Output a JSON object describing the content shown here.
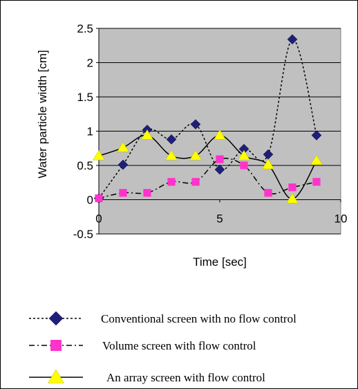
{
  "chart_data": {
    "type": "line",
    "xlabel": "Time [sec]",
    "ylabel": "Water particle width [cm]",
    "xlim": [
      0,
      10
    ],
    "ylim": [
      -0.5,
      2.5
    ],
    "x_ticks": [
      "0",
      "5",
      "10"
    ],
    "y_ticks": [
      "2.5",
      "2",
      "1.5",
      "1",
      "0.5",
      "0",
      "-0.5"
    ],
    "plot_background": "#c0c0c0",
    "grid": true,
    "legend_position": "bottom",
    "series": [
      {
        "name": "Conventional screen with no flow control",
        "marker": "diamond",
        "line_style": "dotted",
        "color": "#1f1f7a",
        "x": [
          0,
          1,
          2,
          3,
          4,
          5,
          6,
          7,
          8,
          9
        ],
        "y": [
          0.02,
          0.51,
          1.02,
          0.88,
          1.1,
          0.44,
          0.74,
          0.66,
          2.34,
          0.94
        ]
      },
      {
        "name": "Volume screen with flow control",
        "marker": "square",
        "line_style": "dash-dot",
        "color": "#ff33cc",
        "x": [
          0,
          1,
          2,
          3,
          4,
          5,
          6,
          7,
          8,
          9
        ],
        "y": [
          0.02,
          0.1,
          0.1,
          0.26,
          0.26,
          0.59,
          0.5,
          0.1,
          0.18,
          0.26
        ]
      },
      {
        "name": "An array screen with flow control",
        "marker": "triangle",
        "line_style": "solid",
        "color": "#ffff00",
        "x": [
          0,
          1,
          2,
          3,
          4,
          5,
          6,
          7,
          8,
          9
        ],
        "y": [
          0.64,
          0.76,
          0.94,
          0.64,
          0.64,
          0.94,
          0.64,
          0.51,
          0.01,
          0.57
        ]
      }
    ]
  }
}
